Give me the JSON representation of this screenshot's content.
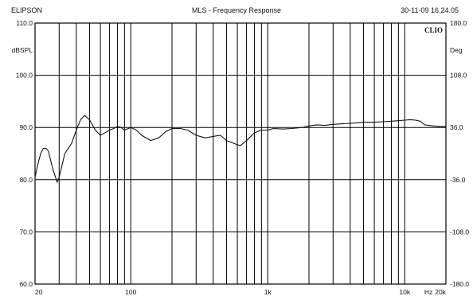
{
  "header": {
    "left": "ELIPSON",
    "center": "MLS - Frequency Response",
    "right": "30-11-09 16.24.05",
    "brand": "CLIO"
  },
  "chart_data": {
    "type": "line",
    "title": "MLS - Frequency Response",
    "x_scale": "log",
    "xlim": [
      20,
      20000
    ],
    "x_tick_labels": [
      {
        "value": 20,
        "label": "20"
      },
      {
        "value": 100,
        "label": "100"
      },
      {
        "value": 1000,
        "label": "1k"
      },
      {
        "value": 10000,
        "label": "10k"
      },
      {
        "value": 20000,
        "label": "20k"
      }
    ],
    "x_unit": "Hz",
    "ylabel": "dBSPL",
    "ylim": [
      60,
      110
    ],
    "y_ticks": [
      "60.0",
      "70.0",
      "80.0",
      "90.0",
      "100.0",
      "110.0"
    ],
    "y2label": "Deg",
    "y2lim": [
      -180,
      180
    ],
    "y2_ticks": [
      "-180.0",
      "-108.0",
      "-36.0",
      "36.0",
      "108.0",
      "180.0"
    ],
    "grid": true,
    "series": [
      {
        "x": [
          20,
          21,
          22,
          23,
          24,
          25,
          27,
          29,
          30,
          31,
          33,
          35,
          37,
          40,
          43,
          46,
          50,
          55,
          60,
          65,
          70,
          75,
          80,
          85,
          90,
          100,
          110,
          120,
          140,
          160,
          180,
          200,
          230,
          260,
          300,
          350,
          400,
          450,
          500,
          560,
          630,
          700,
          800,
          900,
          1000,
          1100,
          1300,
          1500,
          1800,
          2000,
          2300,
          2600,
          3000,
          3500,
          4000,
          4500,
          5000,
          6000,
          7000,
          8000,
          9000,
          10000,
          11000,
          12000,
          13000,
          14000,
          16000,
          18000,
          20000
        ],
        "y": [
          80.5,
          83,
          85,
          86,
          86,
          85.5,
          82,
          79.5,
          80.5,
          82,
          85,
          86,
          87,
          89.5,
          91.5,
          92.3,
          91.5,
          89.5,
          88.5,
          89,
          89.5,
          89.8,
          90.2,
          90,
          89.5,
          90,
          89.5,
          88.5,
          87.5,
          88,
          89.2,
          89.8,
          89.8,
          89.5,
          88.5,
          88,
          88.3,
          88.5,
          87.5,
          87,
          86.5,
          87.5,
          89,
          89.5,
          89.5,
          89.8,
          89.7,
          89.8,
          90,
          90.3,
          90.5,
          90.4,
          90.6,
          90.7,
          90.8,
          90.9,
          91,
          91,
          91.1,
          91.2,
          91.3,
          91.4,
          91.5,
          91.4,
          91.2,
          90.5,
          90.3,
          90.2,
          90.2
        ]
      }
    ]
  }
}
